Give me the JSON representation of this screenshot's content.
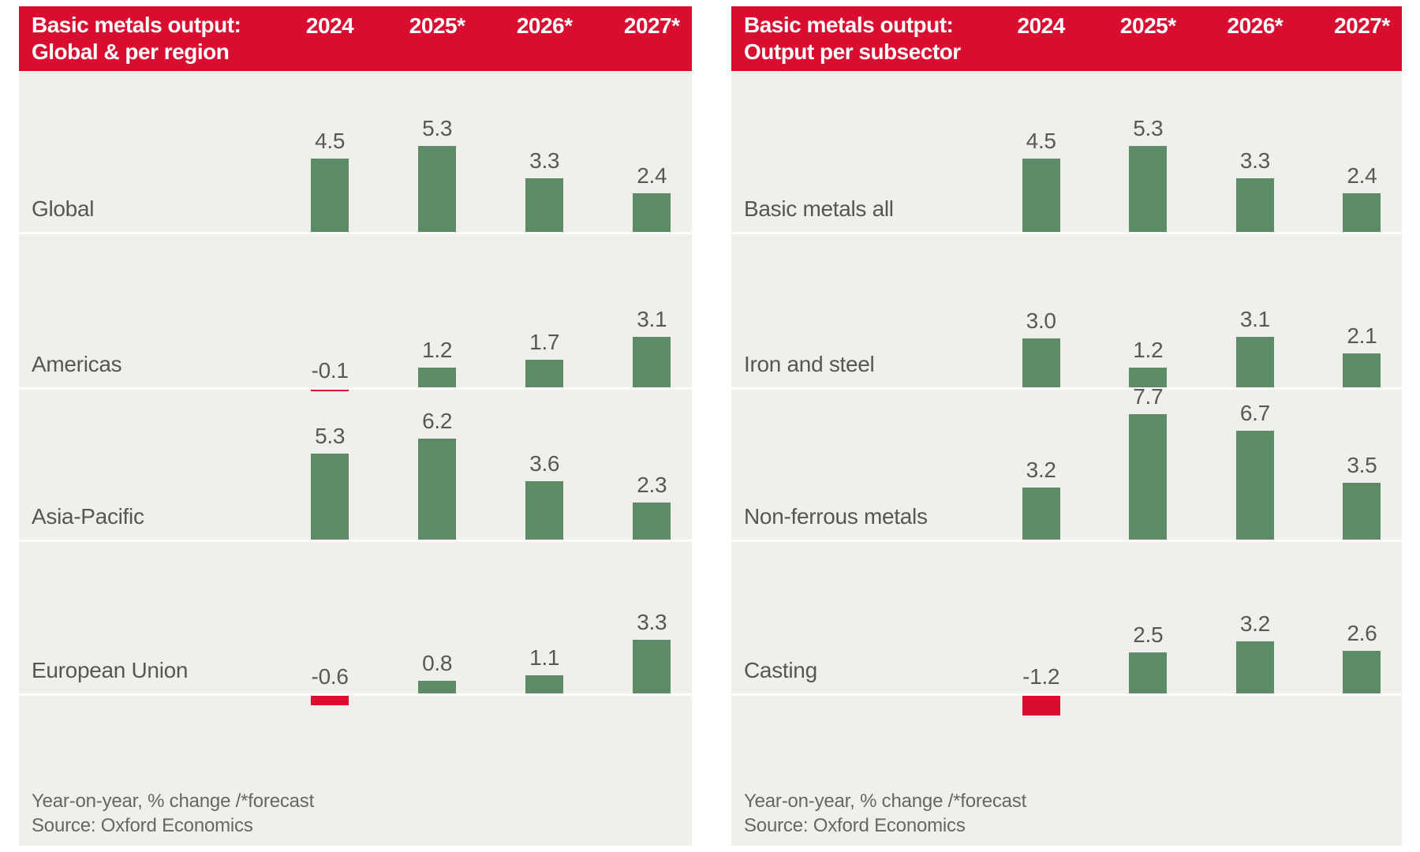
{
  "colors": {
    "header_red": "#d80d30",
    "bar_green": "#5c8b65",
    "bar_negative_red": "#d80d30",
    "panel_bg": "#f0efec",
    "row_label_gray": "#575653",
    "value_label_gray": "#595855",
    "footer_gray": "#676661",
    "divider_white": "#fdfdfc"
  },
  "chart_data": [
    {
      "type": "bar",
      "title": "Basic metals output: Global & per region",
      "title_lines": [
        "Basic metals output:",
        "Global & per region"
      ],
      "categories": [
        "2024",
        "2025*",
        "2026*",
        "2027*"
      ],
      "series": [
        {
          "name": "Global",
          "values": [
            4.5,
            5.3,
            3.3,
            2.4
          ]
        },
        {
          "name": "Americas",
          "values": [
            -0.1,
            1.2,
            1.7,
            3.1
          ]
        },
        {
          "name": "Asia-Pacific",
          "values": [
            5.3,
            6.2,
            3.6,
            2.3
          ]
        },
        {
          "name": "European Union",
          "values": [
            -0.6,
            0.8,
            1.1,
            3.3
          ]
        }
      ],
      "ylabel": "Year-on-year % change",
      "note": "Year-on-year, % change /*forecast",
      "source": "Source: Oxford Economics",
      "legend": "none",
      "grid": false
    },
    {
      "type": "bar",
      "title": "Basic metals output: Output per subsector",
      "title_lines": [
        "Basic metals output:",
        "Output per subsector"
      ],
      "categories": [
        "2024",
        "2025*",
        "2026*",
        "2027*"
      ],
      "series": [
        {
          "name": "Basic metals all",
          "values": [
            4.5,
            5.3,
            3.3,
            2.4
          ]
        },
        {
          "name": "Iron and steel",
          "values": [
            3.0,
            1.2,
            3.1,
            2.1
          ]
        },
        {
          "name": "Non-ferrous metals",
          "values": [
            3.2,
            7.7,
            6.7,
            3.5
          ]
        },
        {
          "name": "Casting",
          "values": [
            -1.2,
            2.5,
            3.2,
            2.6
          ]
        }
      ],
      "ylabel": "Year-on-year % change",
      "note": "Year-on-year, % change /*forecast",
      "source": "Source: Oxford Economics",
      "legend": "none",
      "grid": false
    }
  ]
}
